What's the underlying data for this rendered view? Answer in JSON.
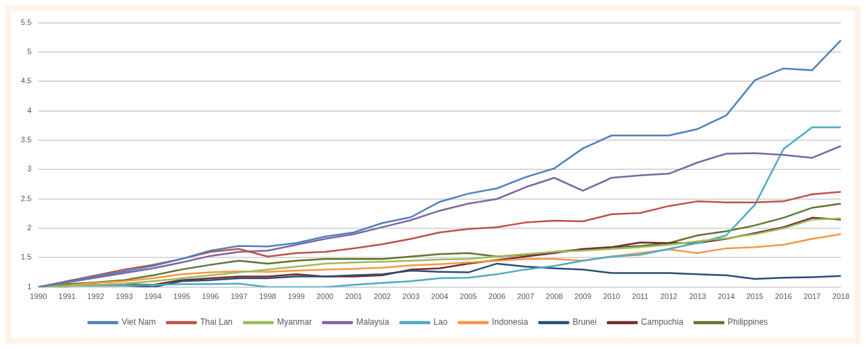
{
  "chart_data": {
    "type": "line",
    "categories": [
      "1990",
      "1991",
      "1992",
      "1993",
      "1994",
      "1995",
      "1996",
      "1997",
      "1998",
      "1999",
      "2000",
      "2001",
      "2002",
      "2003",
      "2004",
      "2005",
      "2006",
      "2007",
      "2008",
      "2009",
      "2010",
      "2011",
      "2012",
      "2013",
      "2014",
      "2015",
      "2016",
      "2017",
      "2018"
    ],
    "series": [
      {
        "name": "Viet Nam",
        "color": "#4f81bd",
        "values": [
          1,
          1.09,
          1.18,
          1.27,
          1.36,
          1.48,
          1.62,
          1.7,
          1.69,
          1.75,
          1.86,
          1.93,
          2.09,
          2.19,
          2.45,
          2.59,
          2.68,
          2.87,
          3.02,
          3.36,
          3.58,
          3.58,
          3.58,
          3.69,
          3.92,
          4.52,
          4.72,
          4.69,
          5.2
        ]
      },
      {
        "name": "Thai Lan",
        "color": "#c0504d",
        "values": [
          1,
          1.1,
          1.2,
          1.3,
          1.38,
          1.48,
          1.6,
          1.65,
          1.52,
          1.58,
          1.6,
          1.66,
          1.73,
          1.82,
          1.93,
          1.99,
          2.02,
          2.1,
          2.13,
          2.12,
          2.24,
          2.26,
          2.38,
          2.46,
          2.44,
          2.44,
          2.46,
          2.58,
          2.62
        ]
      },
      {
        "name": "Myanmar",
        "color": "#9bbb59",
        "values": [
          1,
          1.02,
          1.04,
          1.06,
          1.1,
          1.15,
          1.2,
          1.25,
          1.3,
          1.35,
          1.4,
          1.42,
          1.43,
          1.45,
          1.47,
          1.48,
          1.52,
          1.56,
          1.6,
          1.62,
          1.65,
          1.68,
          1.72,
          1.78,
          1.83,
          1.9,
          2.0,
          2.15,
          2.17
        ]
      },
      {
        "name": "Malaysia",
        "color": "#8064a2",
        "values": [
          1,
          1.08,
          1.16,
          1.24,
          1.32,
          1.42,
          1.53,
          1.6,
          1.62,
          1.72,
          1.82,
          1.9,
          2.02,
          2.14,
          2.3,
          2.42,
          2.5,
          2.7,
          2.86,
          2.64,
          2.86,
          2.9,
          2.93,
          3.12,
          3.27,
          3.28,
          3.25,
          3.2,
          3.4
        ]
      },
      {
        "name": "Lao",
        "color": "#4bacc6",
        "values": [
          1,
          1.02,
          1.03,
          1.03,
          1.04,
          1.05,
          1.05,
          1.06,
          1.0,
          1.0,
          1.0,
          1.04,
          1.07,
          1.1,
          1.15,
          1.16,
          1.22,
          1.3,
          1.36,
          1.45,
          1.52,
          1.55,
          1.65,
          1.75,
          1.88,
          2.4,
          3.35,
          3.72,
          3.72
        ]
      },
      {
        "name": "Indonesia",
        "color": "#f79646",
        "values": [
          1,
          1.03,
          1.07,
          1.1,
          1.15,
          1.22,
          1.25,
          1.27,
          1.26,
          1.28,
          1.3,
          1.31,
          1.33,
          1.37,
          1.39,
          1.42,
          1.45,
          1.48,
          1.48,
          1.45,
          1.52,
          1.58,
          1.64,
          1.58,
          1.66,
          1.68,
          1.72,
          1.82,
          1.9
        ]
      },
      {
        "name": "Brunei",
        "color": "#2c4d75",
        "values": [
          1,
          1.02,
          1.03,
          1.03,
          1.0,
          1.1,
          1.12,
          1.15,
          1.15,
          1.18,
          1.18,
          1.2,
          1.22,
          1.28,
          1.26,
          1.25,
          1.4,
          1.35,
          1.32,
          1.3,
          1.24,
          1.24,
          1.24,
          1.22,
          1.2,
          1.14,
          1.16,
          1.17,
          1.19
        ]
      },
      {
        "name": "Campuchia",
        "color": "#772c2a",
        "values": [
          1,
          1.02,
          1.04,
          1.05,
          1.04,
          1.12,
          1.15,
          1.18,
          1.18,
          1.22,
          1.18,
          1.18,
          1.2,
          1.3,
          1.32,
          1.4,
          1.46,
          1.52,
          1.58,
          1.65,
          1.68,
          1.76,
          1.75,
          1.75,
          1.82,
          1.92,
          2.02,
          2.18,
          2.15
        ]
      },
      {
        "name": "Philippines",
        "color": "#5f7530",
        "values": [
          1,
          1.05,
          1.08,
          1.12,
          1.2,
          1.3,
          1.38,
          1.45,
          1.4,
          1.45,
          1.48,
          1.48,
          1.48,
          1.52,
          1.56,
          1.58,
          1.52,
          1.55,
          1.6,
          1.64,
          1.68,
          1.7,
          1.75,
          1.88,
          1.95,
          2.05,
          2.18,
          2.35,
          2.42
        ]
      }
    ],
    "ylim": [
      1,
      5.5
    ],
    "yticks": [
      1,
      1.5,
      2,
      2.5,
      3,
      3.5,
      4,
      4.5,
      5,
      5.5
    ],
    "grid": "y",
    "legend": "bottom",
    "marker": "none",
    "line_style": "solid"
  }
}
